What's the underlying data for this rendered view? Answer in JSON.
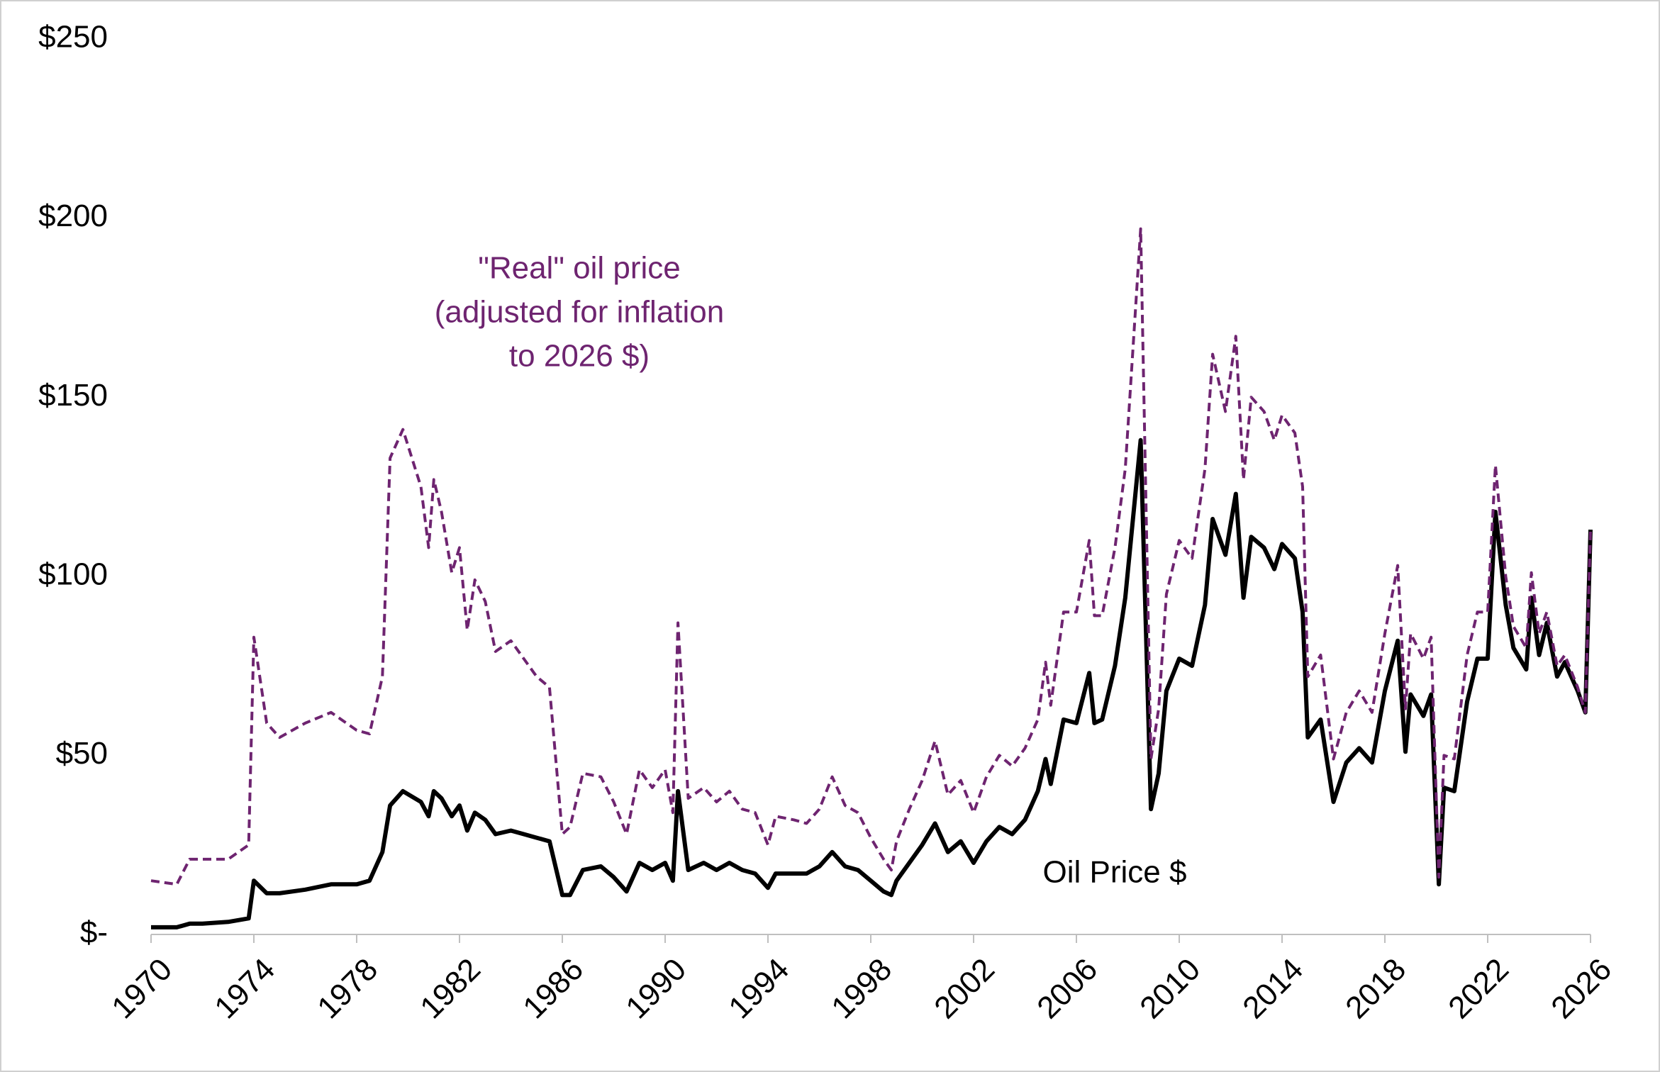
{
  "chart_data": {
    "type": "line",
    "x": [
      1970,
      1971,
      1971.5,
      1972,
      1973,
      1973.8,
      1974,
      1974.5,
      1975,
      1976,
      1977,
      1978,
      1978.5,
      1979,
      1979.3,
      1979.8,
      1980.5,
      1980.8,
      1981,
      1981.3,
      1981.7,
      1982,
      1982.3,
      1982.6,
      1983,
      1983.4,
      1984,
      1984.5,
      1985,
      1985.5,
      1986,
      1986.3,
      1986.8,
      1987.5,
      1988,
      1988.5,
      1989,
      1989.5,
      1990,
      1990.3,
      1990.5,
      1990.9,
      1991.5,
      1992,
      1992.5,
      1993,
      1993.5,
      1994,
      1994.3,
      1995,
      1995.5,
      1996,
      1996.5,
      1997,
      1997.5,
      1998,
      1998.5,
      1998.8,
      1999,
      1999.5,
      2000,
      2000.5,
      2001,
      2001.5,
      2002,
      2002.5,
      2003,
      2003.5,
      2004,
      2004.5,
      2004.8,
      2005,
      2005.5,
      2006,
      2006.5,
      2006.7,
      2007,
      2007.5,
      2007.9,
      2008.5,
      2008.9,
      2009.2,
      2009.5,
      2010,
      2010.5,
      2011,
      2011.3,
      2011.8,
      2012.2,
      2012.5,
      2012.8,
      2013.3,
      2013.7,
      2014,
      2014.5,
      2014.8,
      2015,
      2015.5,
      2016,
      2016.5,
      2017,
      2017.5,
      2018,
      2018.5,
      2018.8,
      2019,
      2019.5,
      2019.8,
      2020.1,
      2020.3,
      2020.7,
      2021.2,
      2021.6,
      2022,
      2022.3,
      2022.7,
      2023,
      2023.5,
      2023.7,
      2024,
      2024.3,
      2024.7,
      2025,
      2025.5,
      2025.8,
      2026
    ],
    "series": [
      {
        "name": "Oil Price $",
        "color": "#000000",
        "dash": false,
        "values": [
          2,
          2,
          3,
          3,
          3.5,
          4.5,
          15,
          11.5,
          11.5,
          12.5,
          14,
          14,
          15,
          23,
          36,
          40,
          37,
          33,
          40,
          38,
          33,
          36,
          29,
          34,
          32,
          28,
          29,
          28,
          27,
          26,
          11,
          11,
          18,
          19,
          16,
          12,
          20,
          18,
          20,
          15,
          40,
          18,
          20,
          18,
          20,
          18,
          17,
          13,
          17,
          17,
          17,
          19,
          23,
          19,
          18,
          15,
          12,
          11,
          15,
          20,
          25,
          31,
          23,
          26,
          20,
          26,
          30,
          28,
          32,
          40,
          49,
          42,
          60,
          59,
          73,
          59,
          60,
          75,
          94,
          138,
          35,
          45,
          68,
          77,
          75,
          92,
          116,
          106,
          123,
          94,
          111,
          108,
          102,
          109,
          105,
          90,
          55,
          60,
          37,
          48,
          52,
          48,
          68,
          82,
          51,
          67,
          61,
          67,
          14,
          41,
          40,
          65,
          77,
          77,
          118,
          92,
          80,
          74,
          94,
          78,
          87,
          72,
          76,
          68,
          62,
          113
        ]
      },
      {
        "name": "\"Real\" oil price",
        "color": "#6e2470",
        "dash": true,
        "values": [
          15,
          14,
          21,
          21,
          21,
          25,
          83,
          59,
          55,
          59,
          62,
          57,
          56,
          72,
          133,
          141,
          125,
          108,
          127,
          118,
          101,
          108,
          85,
          99,
          93,
          79,
          82,
          77,
          72,
          69,
          28,
          30,
          45,
          44,
          37,
          28,
          46,
          41,
          46,
          34,
          87,
          38,
          41,
          37,
          40,
          35,
          34,
          25,
          33,
          32,
          31,
          35,
          44,
          36,
          34,
          27,
          21,
          18,
          26,
          35,
          43,
          54,
          39,
          43,
          34,
          44,
          50,
          47,
          52,
          60,
          76,
          64,
          90,
          90,
          110,
          89,
          89,
          108,
          130,
          197,
          49,
          63,
          95,
          110,
          105,
          130,
          162,
          146,
          167,
          127,
          150,
          146,
          138,
          145,
          140,
          125,
          72,
          78,
          49,
          62,
          68,
          62,
          84,
          103,
          63,
          84,
          77,
          83,
          16,
          50,
          49,
          78,
          90,
          90,
          131,
          100,
          86,
          80,
          101,
          84,
          90,
          75,
          78,
          69,
          62,
          113
        ]
      }
    ],
    "annotations": [
      {
        "lines": [
          "\"Real\" oil price",
          "(adjusted for inflation",
          "to 2026 $)"
        ],
        "color": "#6e2470"
      },
      {
        "lines": [
          "Oil Price $"
        ],
        "color": "#000000"
      }
    ],
    "xlim": [
      1970,
      2026
    ],
    "xticks": [
      1970,
      1974,
      1978,
      1982,
      1986,
      1990,
      1994,
      1998,
      2002,
      2006,
      2010,
      2014,
      2018,
      2022,
      2026
    ],
    "ylim": [
      0,
      250
    ],
    "yticks": [
      {
        "value": 0,
        "label": "$-"
      },
      {
        "value": 50,
        "label": "$50"
      },
      {
        "value": 100,
        "label": "$100"
      },
      {
        "value": 150,
        "label": "$150"
      },
      {
        "value": 200,
        "label": "$200"
      },
      {
        "value": 250,
        "label": "$250"
      }
    ],
    "grid": false,
    "legend": false
  }
}
